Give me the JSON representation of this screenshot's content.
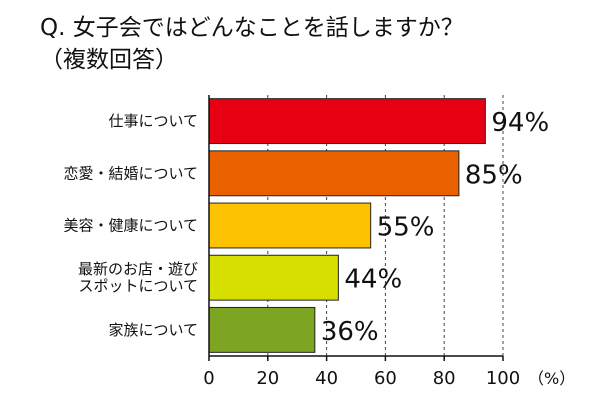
{
  "title": "Q. 女子会ではどんなことを話しますか？",
  "subtitle": "（複数回答）",
  "chart_data": {
    "type": "bar",
    "orientation": "horizontal",
    "title": "Q. 女子会ではどんなことを話しますか？",
    "subtitle": "（複数回答）",
    "categories": [
      [
        "仕事について"
      ],
      [
        "恋愛・結婚について"
      ],
      [
        "美容・健康について"
      ],
      [
        "最新のお店・遊び",
        "スポットについて"
      ],
      [
        "家族について"
      ]
    ],
    "values": [
      94,
      85,
      55,
      44,
      36
    ],
    "value_labels": [
      "94%",
      "85%",
      "55%",
      "44%",
      "36%"
    ],
    "colors": [
      "#e60012",
      "#ea6100",
      "#fdc300",
      "#d6df00",
      "#7ea521"
    ],
    "xlim": [
      0,
      100
    ],
    "xticks": [
      "0",
      "20",
      "40",
      "60",
      "80",
      "100"
    ],
    "x_unit": "（%）",
    "grid": true
  }
}
